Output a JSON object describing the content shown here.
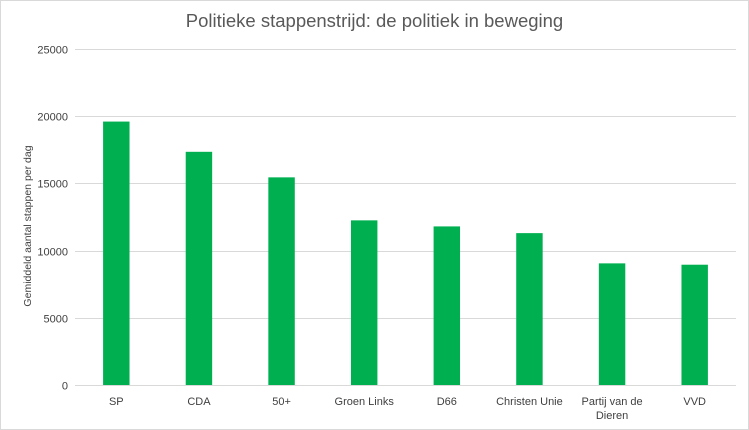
{
  "chart_data": {
    "type": "bar",
    "title": "Politieke stappenstrijd: de politiek in beweging",
    "xlabel": "",
    "ylabel": "Gemiddeld aantal stappen per dag",
    "ylim": [
      0,
      25000
    ],
    "yticks": [
      0,
      5000,
      10000,
      15000,
      20000,
      25000
    ],
    "grid": true,
    "categories": [
      "SP",
      "CDA",
      "50+",
      "Groen Links",
      "D66",
      "Christen Unie",
      "Partij van de Dieren",
      "VVD"
    ],
    "category_lines": [
      [
        "SP"
      ],
      [
        "CDA"
      ],
      [
        "50+"
      ],
      [
        "Groen Links"
      ],
      [
        "D66"
      ],
      [
        "Christen Unie"
      ],
      [
        "Partij van de",
        "Dieren"
      ],
      [
        "VVD"
      ]
    ],
    "values": [
      19600,
      17350,
      15450,
      12250,
      11800,
      11300,
      9050,
      8950
    ],
    "colors": {
      "bar": "#00b050",
      "grid": "#d9d9d9",
      "axis": "#d9d9d9"
    }
  }
}
